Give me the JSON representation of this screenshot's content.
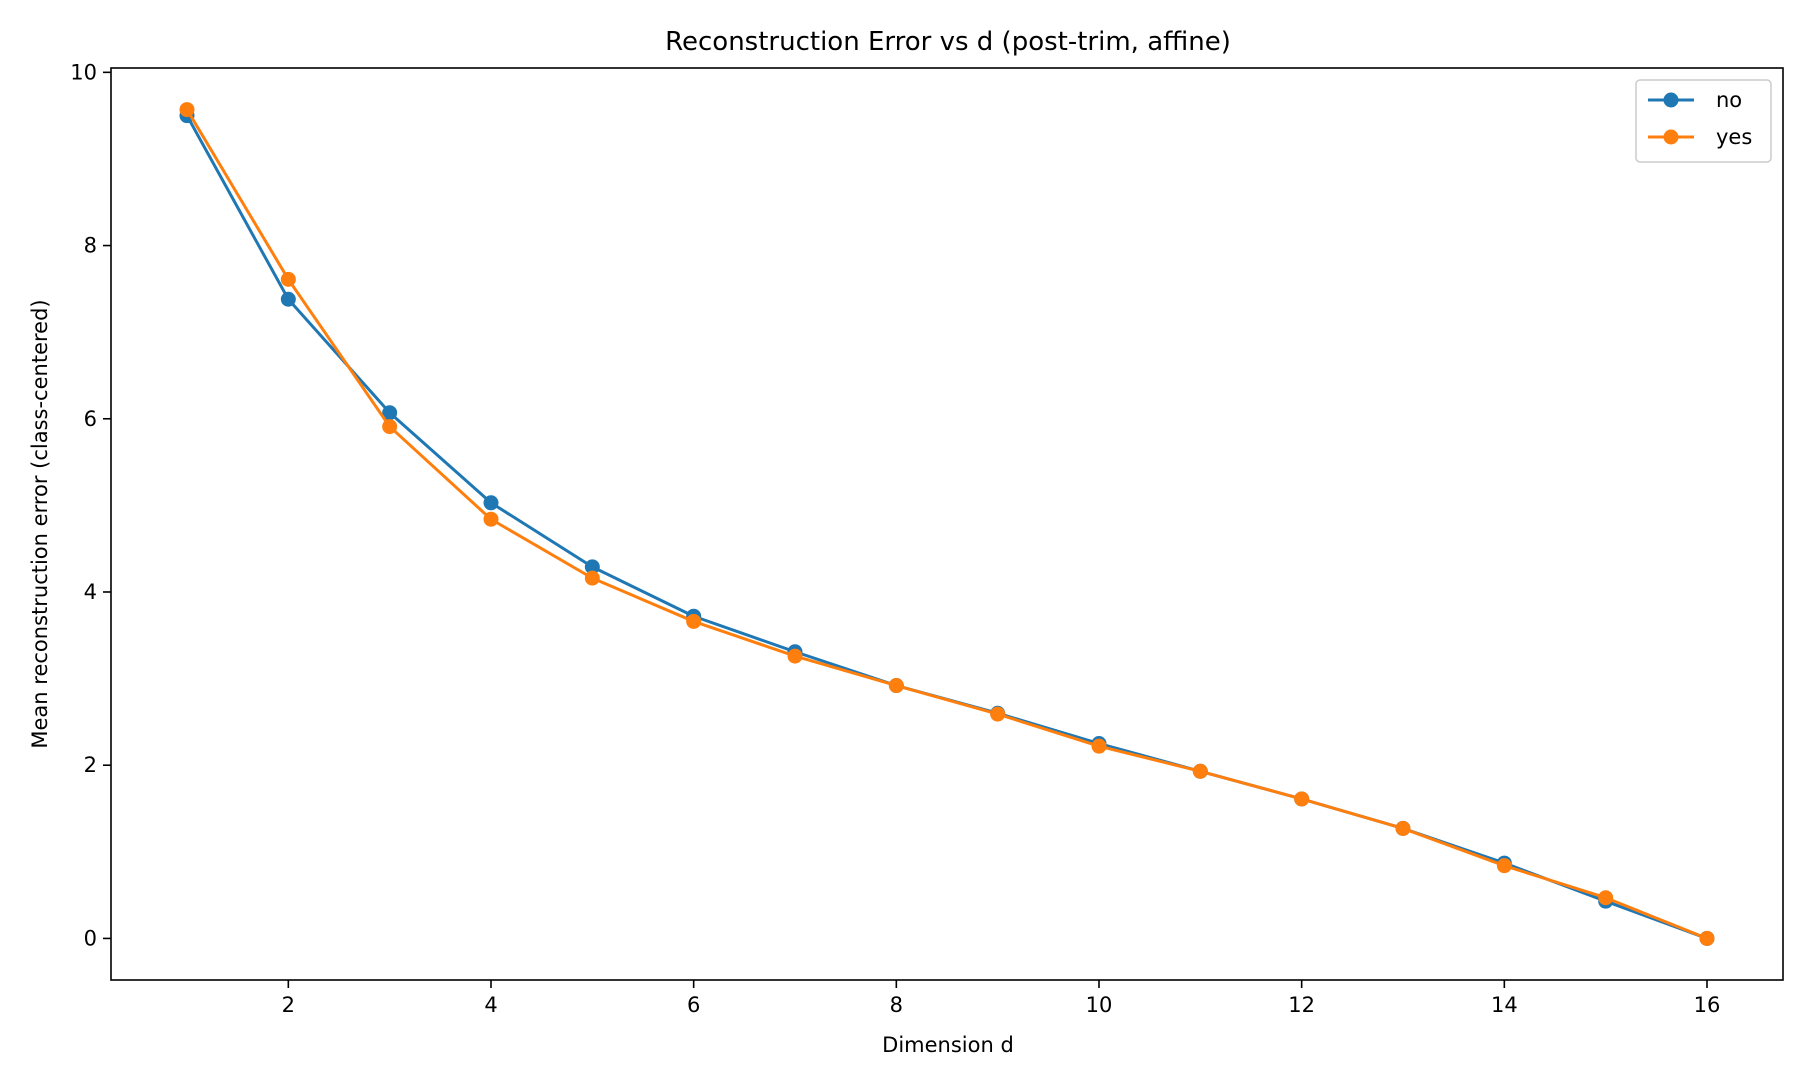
{
  "chart_data": {
    "type": "line",
    "title": "Reconstruction Error vs d (post-trim, affine)",
    "xlabel": "Dimension d",
    "ylabel": "Mean reconstruction error (class-centered)",
    "xlim": [
      0.25,
      16.75
    ],
    "ylim": [
      -0.48,
      10.05
    ],
    "xticks": [
      2,
      4,
      6,
      8,
      10,
      12,
      14,
      16
    ],
    "yticks": [
      0,
      2,
      4,
      6,
      8,
      10
    ],
    "grid": false,
    "legend_position": "top-right",
    "x": [
      1,
      2,
      3,
      4,
      5,
      6,
      7,
      8,
      9,
      10,
      11,
      12,
      13,
      14,
      15,
      16
    ],
    "series": [
      {
        "name": "no",
        "color": "#1f77b4",
        "values": [
          9.5,
          7.38,
          6.07,
          5.03,
          4.29,
          3.72,
          3.31,
          2.92,
          2.6,
          2.25,
          1.93,
          1.61,
          1.27,
          0.87,
          0.43,
          0.0
        ]
      },
      {
        "name": "yes",
        "color": "#ff7f0e",
        "values": [
          9.57,
          7.61,
          5.91,
          4.84,
          4.16,
          3.66,
          3.26,
          2.92,
          2.59,
          2.22,
          1.93,
          1.61,
          1.27,
          0.84,
          0.47,
          0.0
        ]
      }
    ]
  }
}
